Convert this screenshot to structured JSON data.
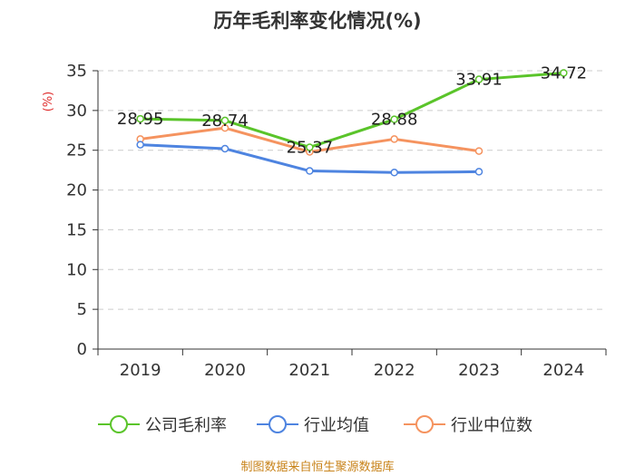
{
  "chart_data": {
    "type": "line",
    "title": "历年毛利率变化情况(%)",
    "ylabel": "(%)",
    "xlabel": "",
    "categories": [
      "2019",
      "2020",
      "2021",
      "2022",
      "2023",
      "2024"
    ],
    "ylim": [
      0,
      35
    ],
    "yticks": [
      0,
      5,
      10,
      15,
      20,
      25,
      30,
      35
    ],
    "grid": true,
    "legend_position": "bottom",
    "series": [
      {
        "name": "公司毛利率",
        "color": "#5ac42a",
        "values": [
          28.95,
          28.74,
          25.37,
          28.88,
          33.91,
          34.72
        ],
        "labels": [
          "28.95",
          "28.74",
          "25.37",
          "28.88",
          "33.91",
          "34.72"
        ]
      },
      {
        "name": "行业均值",
        "color": "#4e84e0",
        "values": [
          25.7,
          25.2,
          22.4,
          22.2,
          22.3,
          null
        ]
      },
      {
        "name": "行业中位数",
        "color": "#f5935f",
        "values": [
          26.4,
          27.8,
          24.8,
          26.4,
          24.9,
          null
        ]
      }
    ]
  },
  "source": "制图数据来自恒生聚源数据库"
}
